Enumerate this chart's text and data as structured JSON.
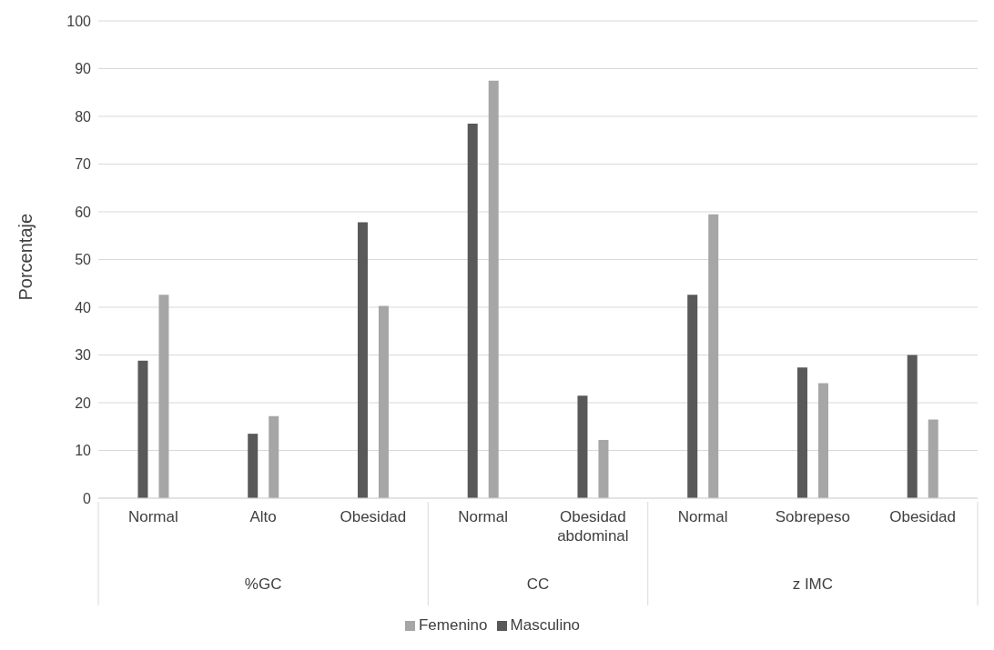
{
  "chart_data": {
    "type": "bar",
    "ylabel": "Porcentaje",
    "categories": [
      "Normal",
      "Alto",
      "Obesidad",
      "Normal",
      "Obesidad abdominal",
      "Normal",
      "Sobrepeso",
      "Obesidad"
    ],
    "annotations": [
      "%GC",
      "CC",
      "z IMC"
    ],
    "series": [
      {
        "name": "Masculino",
        "color": "#595959",
        "values": [
          28.8,
          13.5,
          57.8,
          78.5,
          21.5,
          42.6,
          27.4,
          30.0
        ]
      },
      {
        "name": "Femenino",
        "color": "#a6a6a6",
        "values": [
          42.6,
          17.2,
          40.3,
          87.5,
          12.2,
          59.5,
          24.1,
          16.5
        ]
      }
    ],
    "ylim": [
      0,
      100
    ],
    "yticks": [
      0,
      10,
      20,
      30,
      40,
      50,
      60,
      70,
      80,
      90,
      100
    ],
    "grid": "y",
    "legend": "bottom"
  }
}
